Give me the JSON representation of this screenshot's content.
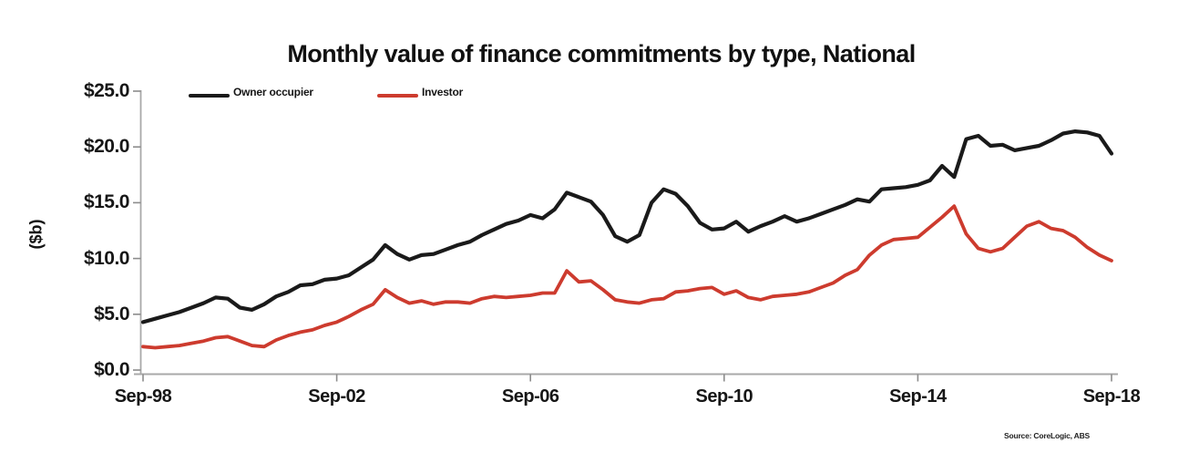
{
  "chart_data": {
    "type": "line",
    "title": "Monthly value of finance commitments by type, National",
    "y_axis_title": "($b)",
    "source_note": "Source: CoreLogic, ABS",
    "x_start": "Sep-98",
    "x_end": "Sep-18",
    "sampling": "quarterly",
    "x_tick_labels": [
      "Sep-98",
      "Sep-02",
      "Sep-06",
      "Sep-10",
      "Sep-14",
      "Sep-18"
    ],
    "y_tick_labels": [
      "$0.0",
      "$5.0",
      "$10.0",
      "$15.0",
      "$20.0",
      "$25.0"
    ],
    "y_tick_values": [
      0,
      5,
      10,
      15,
      20,
      25
    ],
    "ylim": [
      0,
      25
    ],
    "grid": false,
    "legend_position": "top-inside",
    "colors": {
      "axis_line": "#a9a9a9",
      "tick_mark": "#8c8c8c",
      "text": "#161616"
    },
    "series": [
      {
        "name": "Owner occupier",
        "color": "#1a1a1a",
        "stroke_width": 4.2,
        "values": [
          4.3,
          4.6,
          4.9,
          5.2,
          5.6,
          6.0,
          6.5,
          6.4,
          5.6,
          5.4,
          5.9,
          6.6,
          7.0,
          7.6,
          7.7,
          8.1,
          8.2,
          8.5,
          9.2,
          9.9,
          11.2,
          10.4,
          9.9,
          10.3,
          10.4,
          10.8,
          11.2,
          11.5,
          12.1,
          12.6,
          13.1,
          13.4,
          13.9,
          13.6,
          14.4,
          15.9,
          15.5,
          15.1,
          13.9,
          12.0,
          11.5,
          12.1,
          15.0,
          16.2,
          15.8,
          14.7,
          13.2,
          12.6,
          12.7,
          13.3,
          12.4,
          12.9,
          13.3,
          13.8,
          13.3,
          13.6,
          14.0,
          14.4,
          14.8,
          15.3,
          15.1,
          16.2,
          16.3,
          16.4,
          16.6,
          17.0,
          18.3,
          17.3,
          20.7,
          21.0,
          20.1,
          20.2,
          19.7,
          19.9,
          20.1,
          20.6,
          21.2,
          21.4,
          21.3,
          21.0,
          19.4
        ]
      },
      {
        "name": "Investor",
        "color": "#cd3b2e",
        "stroke_width": 3.8,
        "values": [
          2.1,
          2.0,
          2.1,
          2.2,
          2.4,
          2.6,
          2.9,
          3.0,
          2.6,
          2.2,
          2.1,
          2.7,
          3.1,
          3.4,
          3.6,
          4.0,
          4.3,
          4.8,
          5.4,
          5.9,
          7.2,
          6.5,
          6.0,
          6.2,
          5.9,
          6.1,
          6.1,
          6.0,
          6.4,
          6.6,
          6.5,
          6.6,
          6.7,
          6.9,
          6.9,
          8.9,
          7.9,
          8.0,
          7.2,
          6.3,
          6.1,
          6.0,
          6.3,
          6.4,
          7.0,
          7.1,
          7.3,
          7.4,
          6.8,
          7.1,
          6.5,
          6.3,
          6.6,
          6.7,
          6.8,
          7.0,
          7.4,
          7.8,
          8.5,
          9.0,
          10.3,
          11.2,
          11.7,
          11.8,
          11.9,
          12.8,
          13.7,
          14.7,
          12.2,
          10.9,
          10.6,
          10.9,
          11.9,
          12.9,
          13.3,
          12.7,
          12.5,
          11.9,
          11.0,
          10.3,
          9.8
        ]
      }
    ]
  }
}
